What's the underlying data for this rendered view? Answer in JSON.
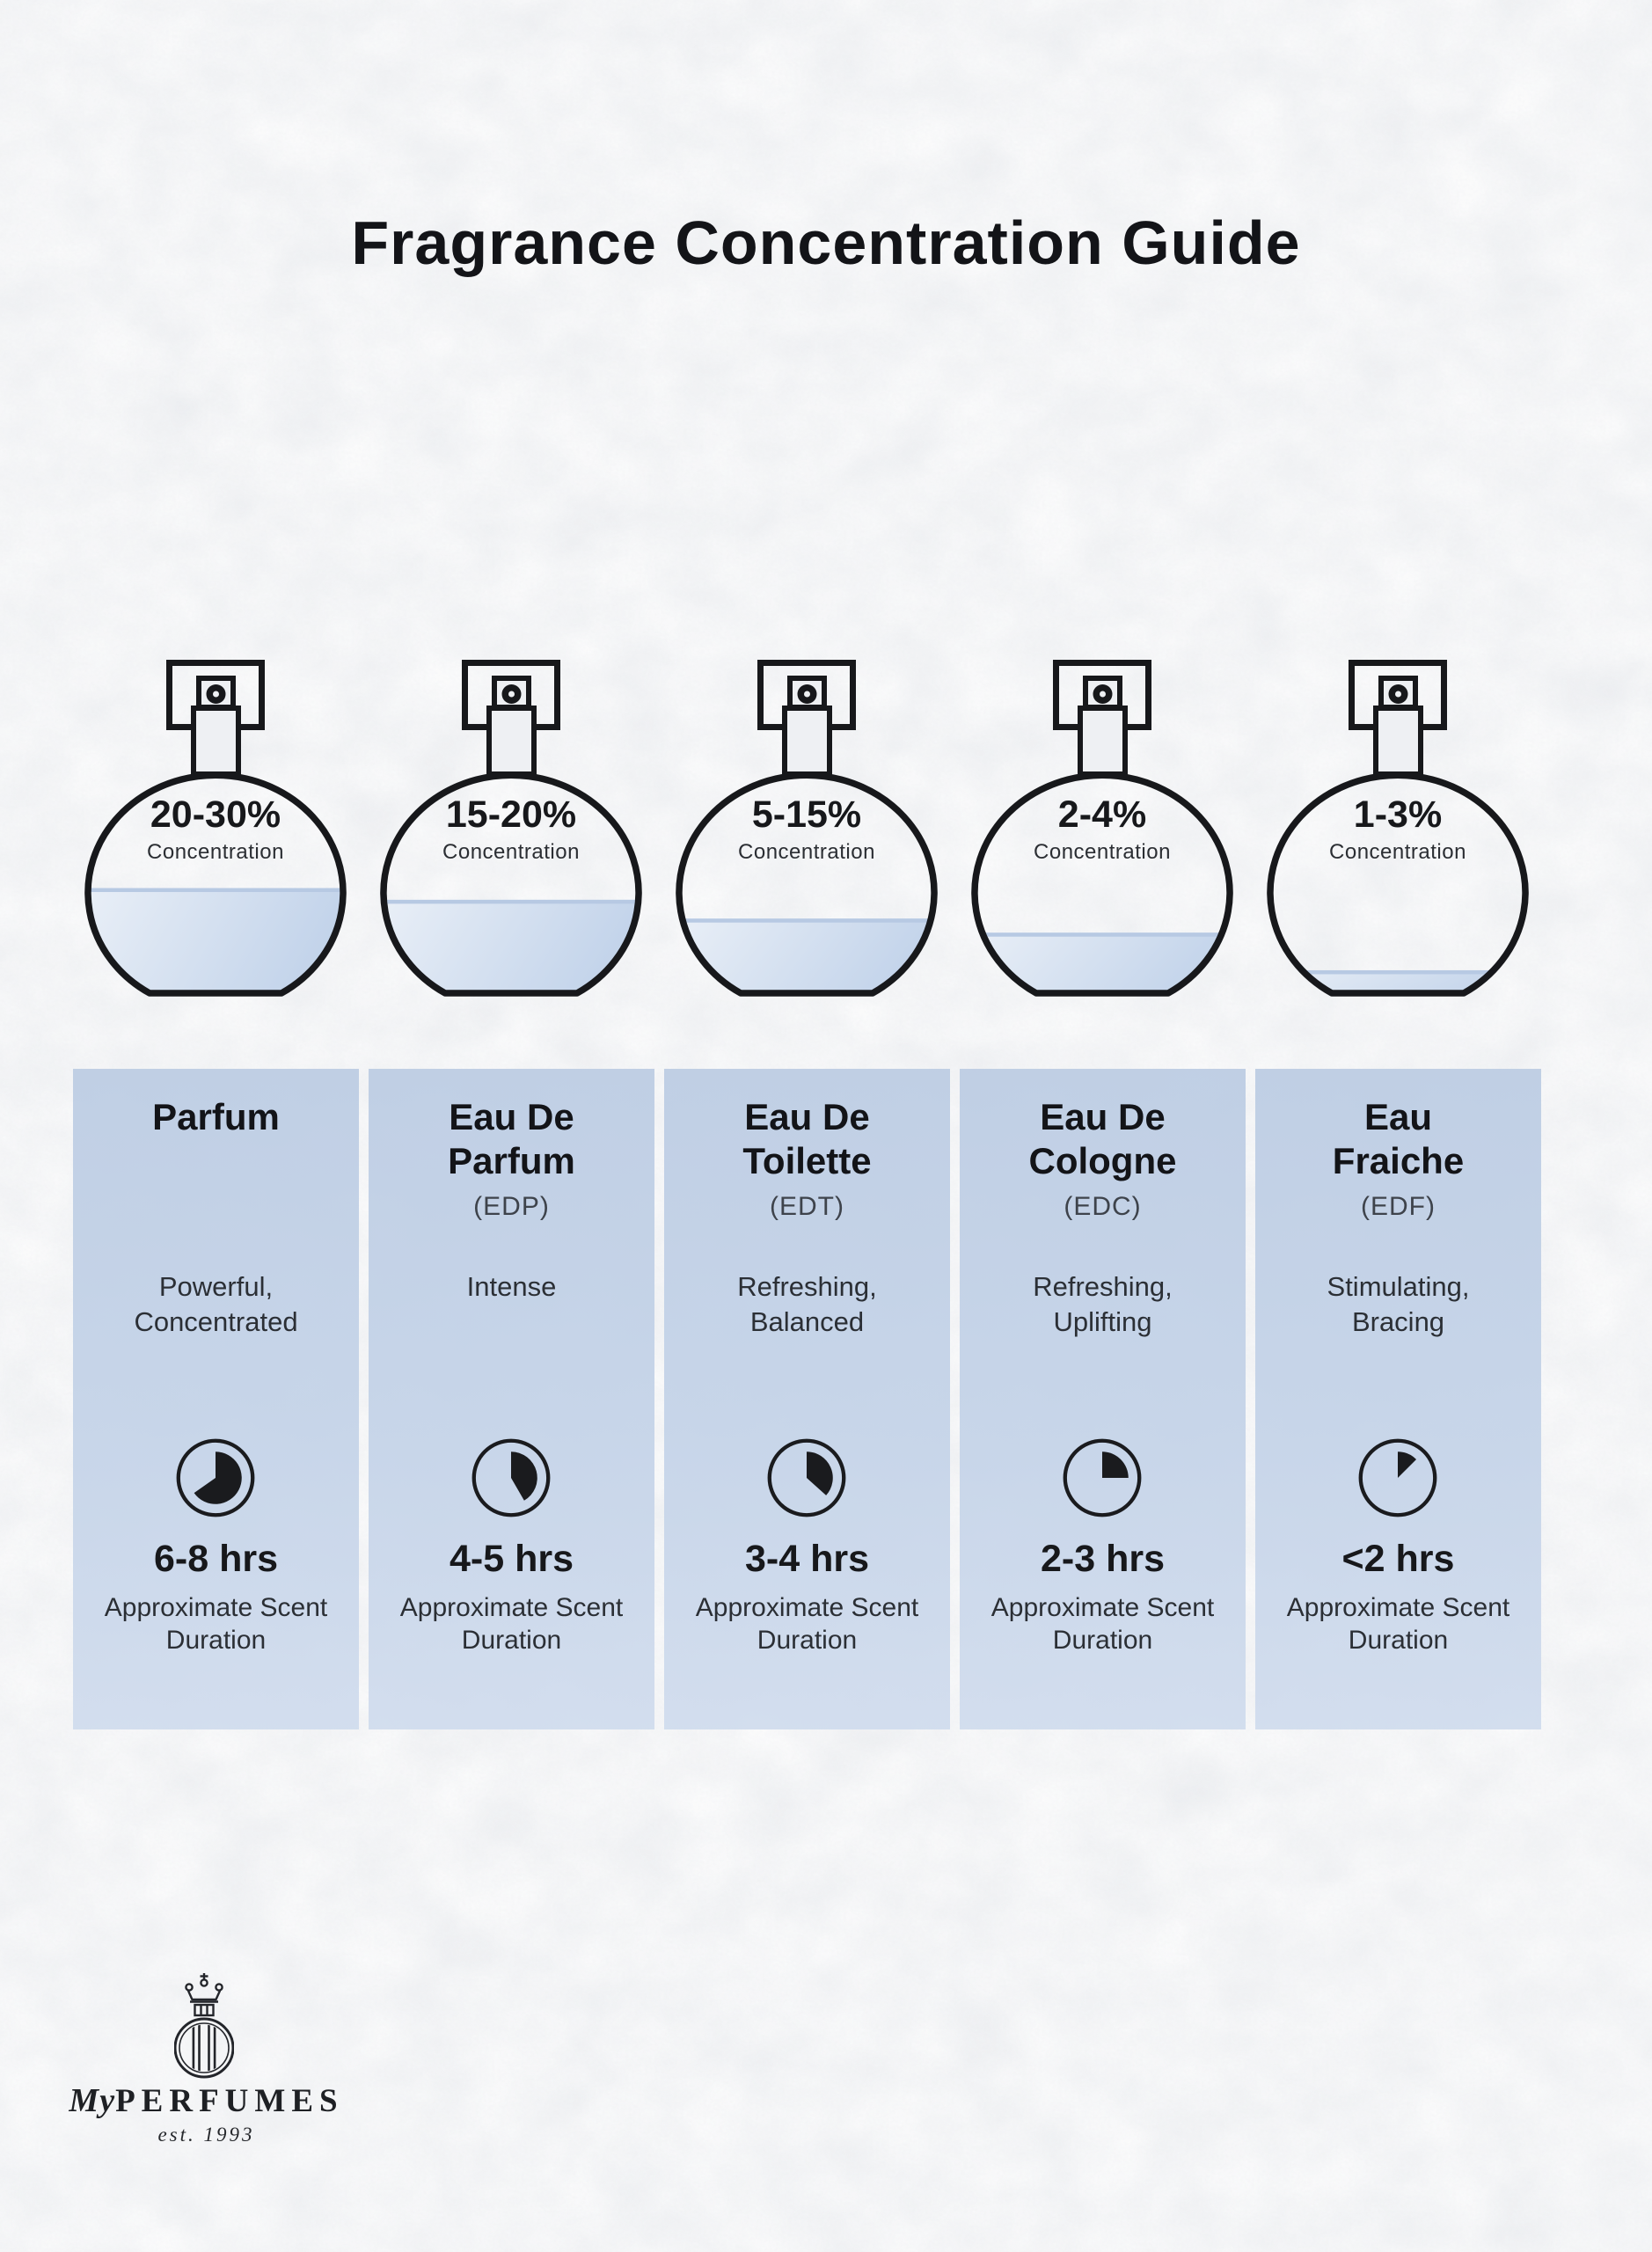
{
  "title": "Fragrance Concentration Guide",
  "bottles": [
    {
      "percent": "20-30%",
      "label": "Concentration",
      "fill_pct": 47
    },
    {
      "percent": "15-20%",
      "label": "Concentration",
      "fill_pct": 42
    },
    {
      "percent": "5-15%",
      "label": "Concentration",
      "fill_pct": 34
    },
    {
      "percent": "2-4%",
      "label": "Concentration",
      "fill_pct": 28
    },
    {
      "percent": "1-3%",
      "label": "Concentration",
      "fill_pct": 12
    }
  ],
  "columns": [
    {
      "title": "Parfum",
      "abbr": "",
      "description": "Powerful, Concentrated",
      "duration": "6-8 hrs",
      "duration_label": "Approximate Scent Duration",
      "clock_deg": 235
    },
    {
      "title": "Eau De Parfum",
      "abbr": "(EDP)",
      "description": "Intense",
      "duration": "4-5 hrs",
      "duration_label": "Approximate Scent Duration",
      "clock_deg": 150
    },
    {
      "title": "Eau De Toilette",
      "abbr": "(EDT)",
      "description": "Refreshing, Balanced",
      "duration": "3-4 hrs",
      "duration_label": "Approximate Scent Duration",
      "clock_deg": 132
    },
    {
      "title": "Eau De Cologne",
      "abbr": "(EDC)",
      "description": "Refreshing, Uplifting",
      "duration": "2-3 hrs",
      "duration_label": "Approximate Scent Duration",
      "clock_deg": 90
    },
    {
      "title": "Eau Fraiche",
      "abbr": "(EDF)",
      "description": "Stimulating, Bracing",
      "duration": "<2 hrs",
      "duration_label": "Approximate Scent Duration",
      "clock_deg": 45
    }
  ],
  "footer": {
    "brand_prefix": "My",
    "brand_name": "PERFUMES",
    "established": "est. 1993"
  },
  "colors": {
    "background": "#eff0f2",
    "column_bg": "#c4d2e8",
    "liquid_light": "#e9eff7",
    "liquid_dark": "#c2d3ea",
    "liquid_edge": "#b7c9e3",
    "ink": "#17181b"
  }
}
